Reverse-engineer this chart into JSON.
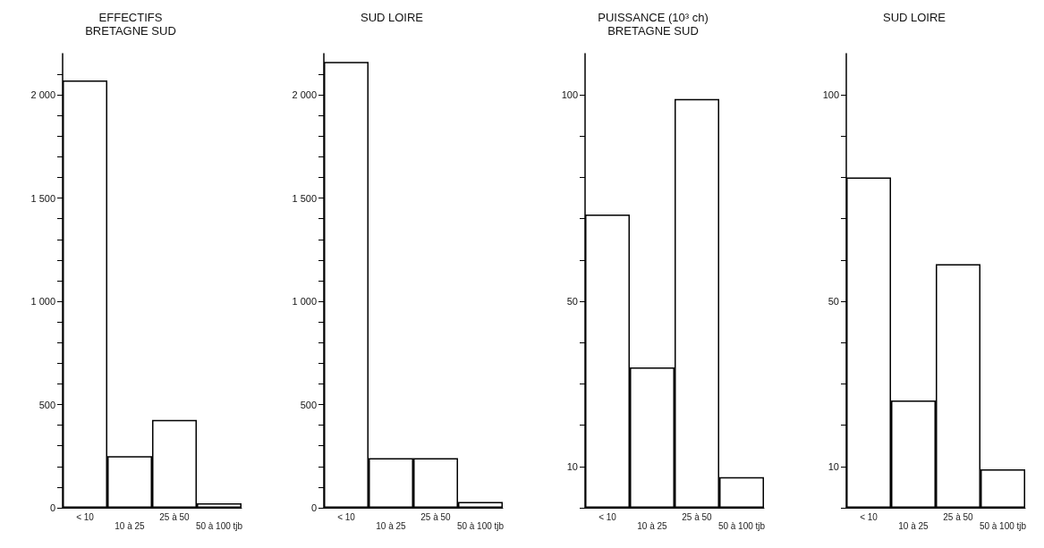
{
  "chart_data": [
    {
      "type": "bar",
      "title": "EFFECTIFS",
      "subtitle": "BRETAGNE SUD",
      "categories": [
        "< 10",
        "10 à 25",
        "25 à 50",
        "50 à 100 tjb"
      ],
      "values": [
        2070,
        250,
        425,
        22
      ],
      "color": "#ffffff",
      "ylim": [
        0,
        2200
      ],
      "yticks": [
        0,
        {
          "value": 100,
          "label": null
        },
        {
          "value": 200,
          "label": null
        },
        {
          "value": 300,
          "label": null
        },
        {
          "value": 400,
          "label": null
        },
        500,
        {
          "value": 600,
          "label": null
        },
        {
          "value": 700,
          "label": null
        },
        {
          "value": 800,
          "label": null
        },
        {
          "value": 900,
          "label": null
        },
        {
          "value": 1000,
          "label": "1 000"
        },
        {
          "value": 1100,
          "label": null
        },
        {
          "value": 1200,
          "label": null
        },
        {
          "value": 1300,
          "label": null
        },
        {
          "value": 1400,
          "label": null
        },
        {
          "value": 1500,
          "label": "1 500"
        },
        {
          "value": 1600,
          "label": null
        },
        {
          "value": 1700,
          "label": null
        },
        {
          "value": 1800,
          "label": null
        },
        {
          "value": 1900,
          "label": null
        },
        {
          "value": 2000,
          "label": "2 000"
        },
        {
          "value": 2100,
          "label": null
        }
      ]
    },
    {
      "type": "bar",
      "title": "SUD LOIRE",
      "categories": [
        "< 10",
        "10 à 25",
        "25 à 50",
        "50 à 100 tjb"
      ],
      "values": [
        2160,
        240,
        240,
        28
      ],
      "color": "#ffffff",
      "ylim": [
        0,
        2200
      ],
      "yticks": [
        0,
        {
          "value": 100,
          "label": null
        },
        {
          "value": 200,
          "label": null
        },
        {
          "value": 300,
          "label": null
        },
        {
          "value": 400,
          "label": null
        },
        500,
        {
          "value": 600,
          "label": null
        },
        {
          "value": 700,
          "label": null
        },
        {
          "value": 800,
          "label": null
        },
        {
          "value": 900,
          "label": null
        },
        {
          "value": 1000,
          "label": "1 000"
        },
        {
          "value": 1100,
          "label": null
        },
        {
          "value": 1200,
          "label": null
        },
        {
          "value": 1300,
          "label": null
        },
        {
          "value": 1400,
          "label": null
        },
        {
          "value": 1500,
          "label": "1 500"
        },
        {
          "value": 1600,
          "label": null
        },
        {
          "value": 1700,
          "label": null
        },
        {
          "value": 1800,
          "label": null
        },
        {
          "value": 1900,
          "label": null
        },
        {
          "value": 2000,
          "label": "2 000"
        },
        {
          "value": 2100,
          "label": null
        }
      ]
    },
    {
      "type": "bar",
      "title": "PUISSANCE (10³ ch)",
      "subtitle": "BRETAGNE SUD",
      "categories": [
        "< 10",
        "10 à 25",
        "25 à 50",
        "50 à 100 tjb"
      ],
      "values": [
        71,
        34,
        99,
        7.4
      ],
      "color": "#ffffff",
      "ylim": [
        0,
        110
      ],
      "yticks": [
        {
          "value": 0,
          "label": null
        },
        10,
        {
          "value": 20,
          "label": null
        },
        {
          "value": 30,
          "label": null
        },
        {
          "value": 40,
          "label": null
        },
        50,
        {
          "value": 60,
          "label": null
        },
        {
          "value": 70,
          "label": null
        },
        {
          "value": 80,
          "label": null
        },
        {
          "value": 90,
          "label": null
        },
        100
      ]
    },
    {
      "type": "bar",
      "title": "SUD LOIRE",
      "categories": [
        "< 10",
        "10 à 25",
        "25 à 50",
        "50 à 100 tjb"
      ],
      "values": [
        80,
        26,
        59,
        9.3
      ],
      "color": "#ffffff",
      "ylim": [
        0,
        110
      ],
      "yticks": [
        {
          "value": 0,
          "label": null
        },
        10,
        {
          "value": 20,
          "label": null
        },
        {
          "value": 30,
          "label": null
        },
        {
          "value": 40,
          "label": null
        },
        50,
        {
          "value": 60,
          "label": null
        },
        {
          "value": 70,
          "label": null
        },
        {
          "value": 80,
          "label": null
        },
        {
          "value": 90,
          "label": null
        },
        100
      ]
    }
  ]
}
